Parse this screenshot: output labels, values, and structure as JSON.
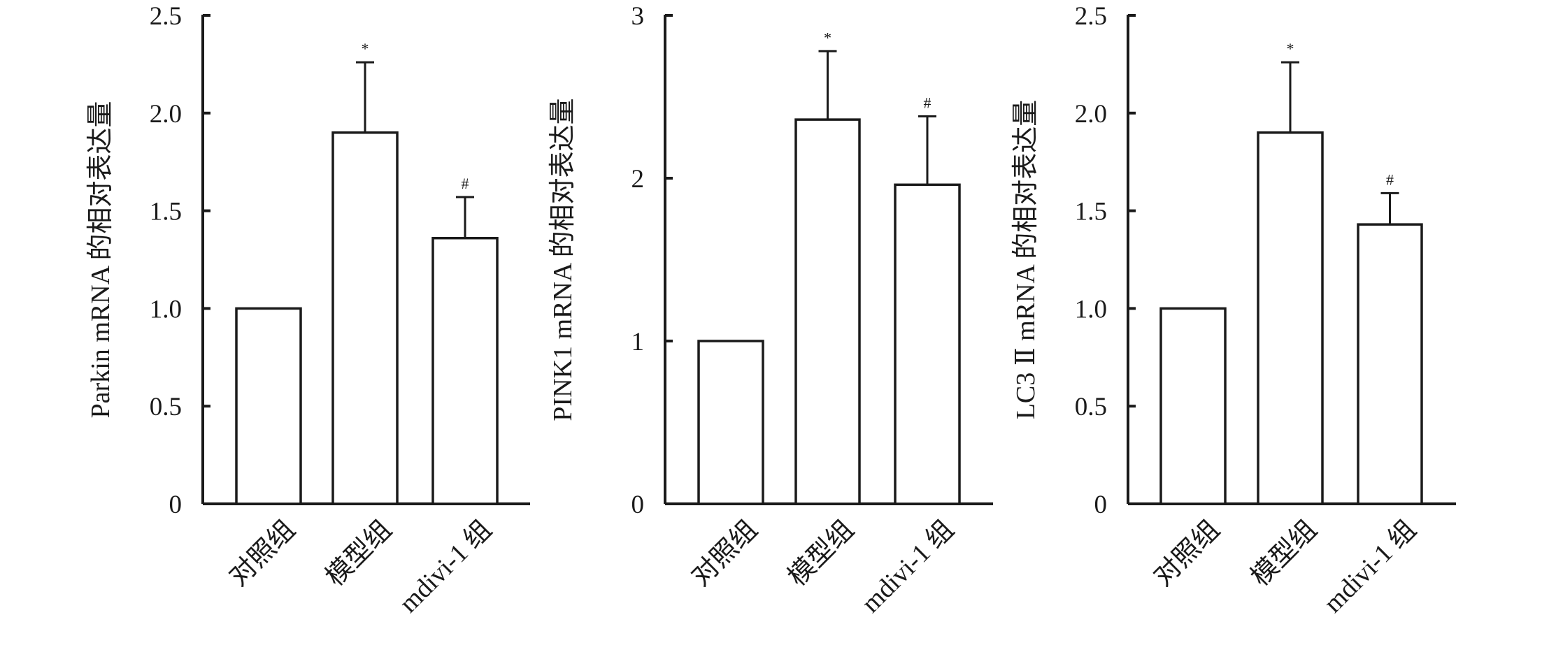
{
  "chart_data": [
    {
      "type": "bar",
      "categories": [
        "对照组",
        "模型组",
        "mdivi-1 组"
      ],
      "values": [
        1.0,
        1.9,
        1.36
      ],
      "errors": [
        0,
        0.36,
        0.21
      ],
      "annotations": [
        "",
        "*",
        "#"
      ],
      "ylabel": "Parkin mRNA 的相对表达量",
      "ylim": [
        0,
        2.5
      ],
      "yticks": [
        0,
        0.5,
        1.0,
        1.5,
        2.0,
        2.5
      ],
      "ytick_labels": [
        "0",
        "0.5",
        "1.0",
        "1.5",
        "2.0",
        "2.5"
      ],
      "grid": false
    },
    {
      "type": "bar",
      "categories": [
        "对照组",
        "模型组",
        "mdivi-1 组"
      ],
      "values": [
        1.0,
        2.36,
        1.96
      ],
      "errors": [
        0,
        0.42,
        0.42
      ],
      "annotations": [
        "",
        "*",
        "#"
      ],
      "ylabel": "PINK1 mRNA 的相对表达量",
      "ylim": [
        0,
        3
      ],
      "yticks": [
        0,
        1,
        2,
        3
      ],
      "ytick_labels": [
        "0",
        "1",
        "2",
        "3"
      ],
      "grid": false
    },
    {
      "type": "bar",
      "categories": [
        "对照组",
        "模型组",
        "mdivi-1 组"
      ],
      "values": [
        1.0,
        1.9,
        1.43
      ],
      "errors": [
        0,
        0.36,
        0.16
      ],
      "annotations": [
        "",
        "*",
        "#"
      ],
      "ylabel": "LC3 Ⅱ mRNA 的相对表达量",
      "ylim": [
        0,
        2.5
      ],
      "yticks": [
        0,
        0.5,
        1.0,
        1.5,
        2.0,
        2.5
      ],
      "ytick_labels": [
        "0",
        "0.5",
        "1.0",
        "1.5",
        "2.0",
        "2.5"
      ],
      "grid": false
    }
  ]
}
